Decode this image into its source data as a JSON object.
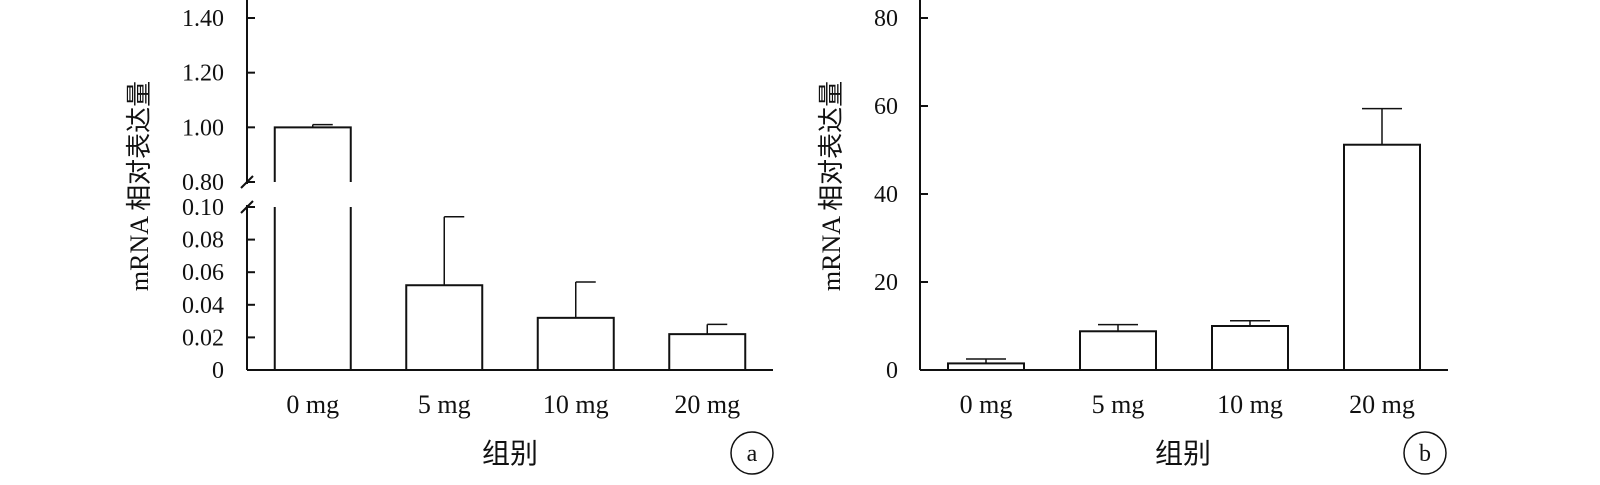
{
  "chart_data": [
    {
      "type": "bar",
      "panel_label": "a",
      "xlabel": "组别",
      "ylabel": "mRNA 相对表达量",
      "categories": [
        "0 mg",
        "5 mg",
        "10 mg",
        "20 mg"
      ],
      "values": [
        1.0,
        0.052,
        0.032,
        0.022
      ],
      "error": [
        0.01,
        0.042,
        0.022,
        0.006
      ],
      "y_axis_break": {
        "lower_range": [
          0,
          0.1
        ],
        "upper_range": [
          0.8,
          1.4
        ]
      },
      "lower_ticks": [
        "0",
        "0.02",
        "0.04",
        "0.06",
        "0.08",
        "0.10"
      ],
      "upper_ticks": [
        "0.80",
        "1.00",
        "1.20",
        "1.40"
      ],
      "grid": false,
      "legend": "none"
    },
    {
      "type": "bar",
      "panel_label": "b",
      "xlabel": "组别",
      "ylabel": "mRNA 相对表达量",
      "categories": [
        "0 mg",
        "5 mg",
        "10 mg",
        "20 mg"
      ],
      "values": [
        1.5,
        8.8,
        10.0,
        51.2
      ],
      "error": [
        1.0,
        1.5,
        1.2,
        8.2
      ],
      "ylim": [
        0,
        80
      ],
      "ticks": [
        "0",
        "20",
        "40",
        "60",
        "80"
      ],
      "grid": false,
      "legend": "none"
    }
  ]
}
